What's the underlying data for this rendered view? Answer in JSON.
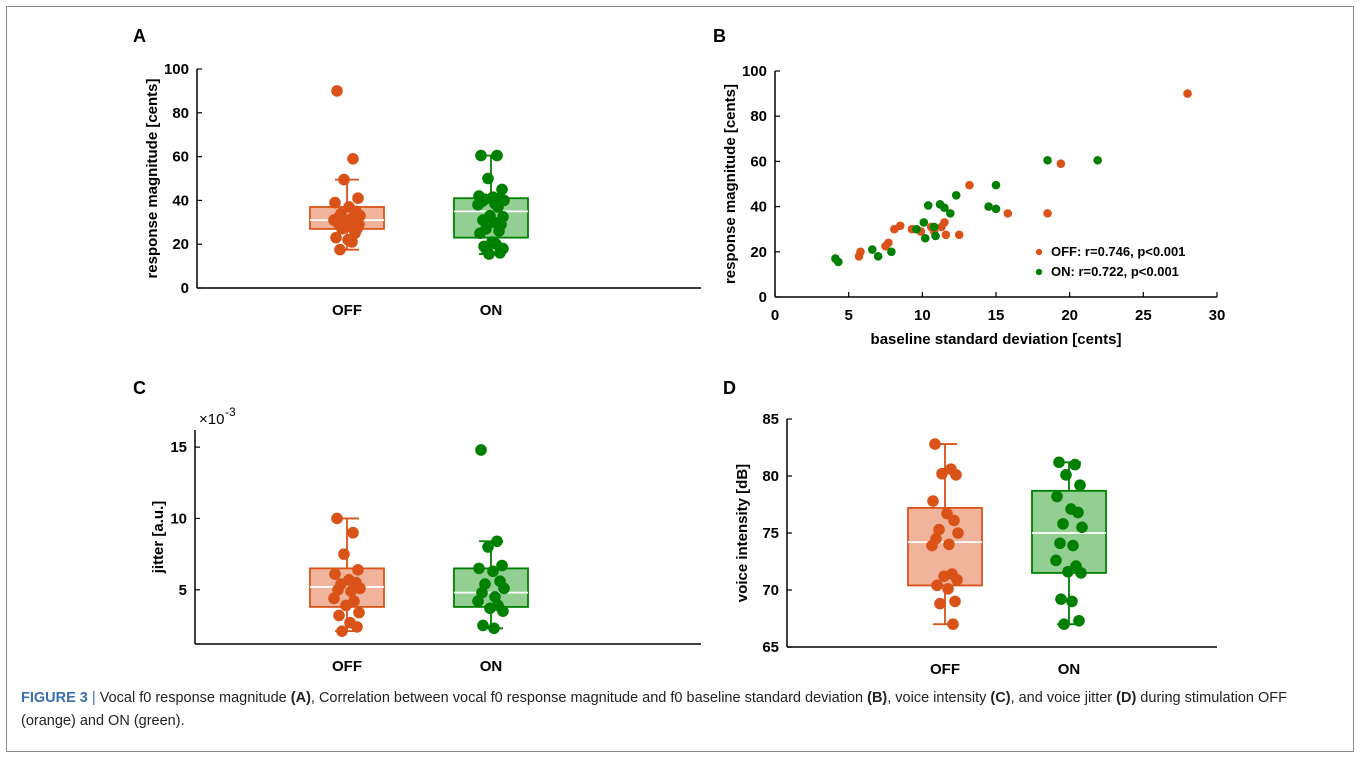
{
  "colors": {
    "off": "#d95319",
    "off_fill": "#f0b49c",
    "on": "#008000",
    "on_fill": "#93cf93"
  },
  "caption": {
    "figure_label": "FIGURE 3",
    "separator": "|",
    "segments": [
      {
        "text": " Vocal f0 response magnitude ",
        "bold": false
      },
      {
        "text": "(A)",
        "bold": true
      },
      {
        "text": ", Correlation between vocal f0 response magnitude and f0 baseline standard deviation ",
        "bold": false
      },
      {
        "text": "(B)",
        "bold": true
      },
      {
        "text": ", voice intensity ",
        "bold": false
      },
      {
        "text": "(C)",
        "bold": true
      },
      {
        "text": ", and voice jitter ",
        "bold": false
      },
      {
        "text": "(D)",
        "bold": true
      },
      {
        "text": " during stimulation OFF (orange) and ON (green).",
        "bold": false
      }
    ]
  },
  "chart_data": [
    {
      "panel": "A",
      "type": "box",
      "ylabel": "response magnitude [cents]",
      "ylim": [
        0,
        100
      ],
      "yticks": [
        0,
        20,
        40,
        60,
        80,
        100
      ],
      "categories": [
        "OFF",
        "ON"
      ],
      "series": [
        {
          "name": "OFF",
          "color": "off",
          "box": {
            "whisker_low": 17.5,
            "q1": 27,
            "median": 31,
            "q3": 37,
            "whisker_high": 49.5
          },
          "points": [
            90,
            59,
            49.5,
            41,
            39,
            37,
            35,
            34,
            33,
            32,
            31.5,
            31,
            30,
            30,
            29,
            29,
            28,
            27,
            27,
            25,
            23,
            22,
            21,
            17.5
          ]
        },
        {
          "name": "ON",
          "color": "on",
          "box": {
            "whisker_low": 15.5,
            "q1": 23,
            "median": 35,
            "q3": 41,
            "whisker_high": 60.5
          },
          "points": [
            60.5,
            60.5,
            50,
            45,
            42,
            41.5,
            41,
            40.5,
            40,
            39.5,
            38.5,
            38,
            37,
            33,
            32.5,
            31,
            30,
            29,
            27,
            26,
            25,
            21,
            20,
            19,
            18,
            17,
            16,
            15.5
          ]
        }
      ]
    },
    {
      "panel": "B",
      "type": "scatter",
      "xlabel": "baseline standard deviation [cents]",
      "ylabel": "response magnitude [cents]",
      "xlim": [
        0,
        30
      ],
      "ylim": [
        0,
        100
      ],
      "xticks": [
        0,
        5,
        10,
        15,
        20,
        25,
        30
      ],
      "yticks": [
        0,
        20,
        40,
        60,
        80,
        100
      ],
      "legend_position": "lower-right",
      "series": [
        {
          "name": "OFF: r=0.746, p<0.001",
          "color": "off",
          "points": [
            [
              5.7,
              18
            ],
            [
              5.8,
              20
            ],
            [
              7.5,
              22.5
            ],
            [
              7.7,
              24
            ],
            [
              8.1,
              30
            ],
            [
              8.5,
              31.5
            ],
            [
              9.3,
              30
            ],
            [
              9.9,
              29
            ],
            [
              10.6,
              31
            ],
            [
              10.8,
              29
            ],
            [
              11.3,
              31
            ],
            [
              11.5,
              33
            ],
            [
              11.6,
              27.5
            ],
            [
              12.5,
              27.5
            ],
            [
              13.2,
              49.5
            ],
            [
              15.8,
              37
            ],
            [
              18.5,
              37
            ],
            [
              19.4,
              59
            ],
            [
              28,
              90
            ]
          ]
        },
        {
          "name": "ON: r=0.722, p<0.001",
          "color": "on",
          "points": [
            [
              4.1,
              17
            ],
            [
              4.3,
              15.5
            ],
            [
              6.6,
              21
            ],
            [
              7.0,
              18
            ],
            [
              7.9,
              20
            ],
            [
              9.6,
              30
            ],
            [
              10.1,
              33
            ],
            [
              10.2,
              26
            ],
            [
              10.4,
              40.5
            ],
            [
              10.8,
              31
            ],
            [
              10.9,
              27
            ],
            [
              11.2,
              41
            ],
            [
              11.5,
              39.5
            ],
            [
              11.9,
              37
            ],
            [
              12.3,
              45
            ],
            [
              14.5,
              40
            ],
            [
              15.0,
              49.5
            ],
            [
              15.0,
              39
            ],
            [
              18.5,
              60.5
            ],
            [
              21.9,
              60.5
            ]
          ]
        }
      ]
    },
    {
      "panel": "C",
      "type": "box",
      "ylabel": "jitter [a.u.]",
      "y_multiplier": "×10",
      "y_multiplier_exp": "-3",
      "ylim": [
        1.2,
        16.2
      ],
      "yticks": [
        5,
        10,
        15
      ],
      "categories": [
        "OFF",
        "ON"
      ],
      "series": [
        {
          "name": "OFF",
          "color": "off",
          "box": {
            "whisker_low": 2.1,
            "q1": 3.8,
            "median": 5.2,
            "q3": 6.5,
            "whisker_high": 10.0
          },
          "points": [
            10.0,
            9.0,
            7.5,
            6.4,
            6.1,
            5.7,
            5.5,
            5.4,
            5.1,
            5.0,
            4.9,
            4.4,
            4.2,
            3.9,
            3.4,
            3.2,
            2.7,
            2.4,
            2.1
          ]
        },
        {
          "name": "ON",
          "color": "on",
          "box": {
            "whisker_low": 2.3,
            "q1": 3.8,
            "median": 4.8,
            "q3": 6.5,
            "whisker_high": 8.4
          },
          "points": [
            14.8,
            8.4,
            8.0,
            6.7,
            6.5,
            6.3,
            5.6,
            5.4,
            5.1,
            4.8,
            4.5,
            4.2,
            3.9,
            3.7,
            3.5,
            2.5,
            2.3
          ]
        }
      ]
    },
    {
      "panel": "D",
      "type": "box",
      "ylabel": "voice intensity [dB]",
      "ylim": [
        65,
        85
      ],
      "yticks": [
        65,
        70,
        75,
        80,
        85
      ],
      "categories": [
        "OFF",
        "ON"
      ],
      "series": [
        {
          "name": "OFF",
          "color": "off",
          "box": {
            "whisker_low": 67,
            "q1": 70.4,
            "median": 74.2,
            "q3": 77.2,
            "whisker_high": 82.8
          },
          "points": [
            82.8,
            80.6,
            80.2,
            80.1,
            77.8,
            76.7,
            76.1,
            75.3,
            75.0,
            74.5,
            74.0,
            73.9,
            71.4,
            71.2,
            70.9,
            70.4,
            70.1,
            69.0,
            68.8,
            67.0
          ]
        },
        {
          "name": "ON",
          "color": "on",
          "box": {
            "whisker_low": 67,
            "q1": 71.5,
            "median": 75.0,
            "q3": 78.7,
            "whisker_high": 81.2
          },
          "points": [
            81.2,
            81.0,
            80.1,
            79.2,
            78.2,
            77.1,
            76.8,
            75.8,
            75.5,
            74.1,
            73.9,
            72.6,
            72.1,
            71.6,
            71.5,
            69.2,
            69.0,
            67.3,
            67.0
          ]
        }
      ]
    }
  ],
  "panel_labels": {
    "a": "A",
    "b": "B",
    "c": "C",
    "d": "D"
  }
}
